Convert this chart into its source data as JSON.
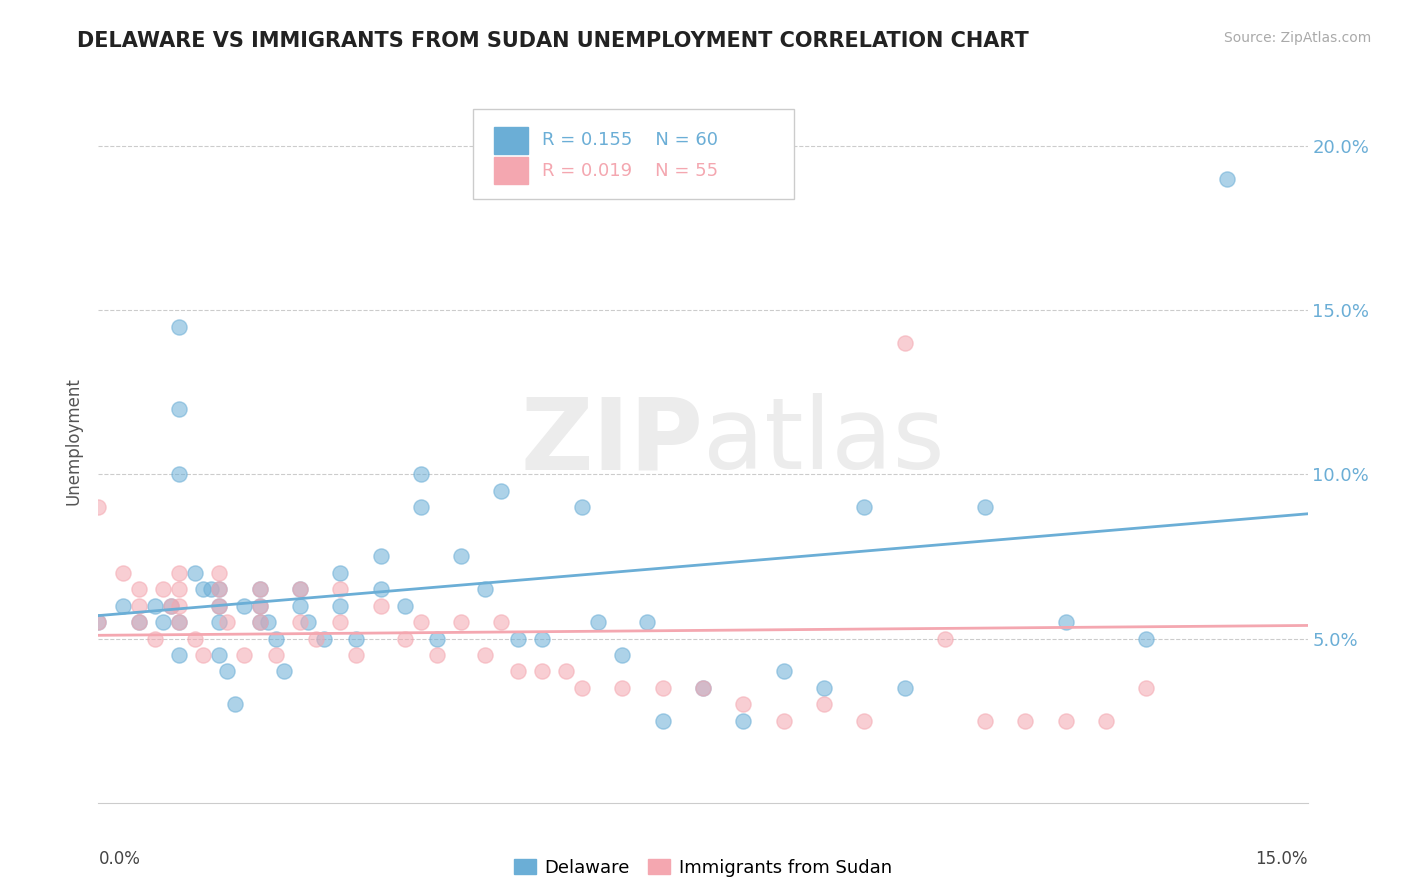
{
  "title": "DELAWARE VS IMMIGRANTS FROM SUDAN UNEMPLOYMENT CORRELATION CHART",
  "source": "Source: ZipAtlas.com",
  "ylabel": "Unemployment",
  "xlim": [
    0.0,
    0.15
  ],
  "ylim": [
    0.0,
    0.22
  ],
  "xtick_vals": [
    0.0,
    0.05,
    0.1,
    0.15
  ],
  "xtick_labels_bottom_left": "0.0%",
  "xtick_labels_bottom_right": "15.0%",
  "ytick_vals": [
    0.05,
    0.1,
    0.15,
    0.2
  ],
  "ytick_labels": [
    "5.0%",
    "10.0%",
    "15.0%",
    "20.0%"
  ],
  "delaware_color": "#6baed6",
  "sudan_color": "#f4a7b0",
  "delaware_R": 0.155,
  "delaware_N": 60,
  "sudan_R": 0.019,
  "sudan_N": 55,
  "legend_label_delaware": "Delaware",
  "legend_label_sudan": "Immigrants from Sudan",
  "watermark_zip": "ZIP",
  "watermark_atlas": "atlas",
  "delaware_x": [
    0.0,
    0.003,
    0.005,
    0.007,
    0.008,
    0.009,
    0.01,
    0.01,
    0.01,
    0.01,
    0.01,
    0.012,
    0.013,
    0.014,
    0.015,
    0.015,
    0.015,
    0.015,
    0.016,
    0.017,
    0.018,
    0.02,
    0.02,
    0.02,
    0.021,
    0.022,
    0.023,
    0.025,
    0.025,
    0.026,
    0.028,
    0.03,
    0.03,
    0.032,
    0.035,
    0.035,
    0.038,
    0.04,
    0.04,
    0.042,
    0.045,
    0.048,
    0.05,
    0.052,
    0.055,
    0.06,
    0.062,
    0.065,
    0.068,
    0.07,
    0.075,
    0.08,
    0.085,
    0.09,
    0.095,
    0.1,
    0.11,
    0.12,
    0.13,
    0.14
  ],
  "delaware_y": [
    0.055,
    0.06,
    0.055,
    0.06,
    0.055,
    0.06,
    0.145,
    0.12,
    0.1,
    0.055,
    0.045,
    0.07,
    0.065,
    0.065,
    0.065,
    0.06,
    0.055,
    0.045,
    0.04,
    0.03,
    0.06,
    0.065,
    0.06,
    0.055,
    0.055,
    0.05,
    0.04,
    0.065,
    0.06,
    0.055,
    0.05,
    0.07,
    0.06,
    0.05,
    0.075,
    0.065,
    0.06,
    0.1,
    0.09,
    0.05,
    0.075,
    0.065,
    0.095,
    0.05,
    0.05,
    0.09,
    0.055,
    0.045,
    0.055,
    0.025,
    0.035,
    0.025,
    0.04,
    0.035,
    0.09,
    0.035,
    0.09,
    0.055,
    0.05,
    0.19
  ],
  "sudan_x": [
    0.0,
    0.0,
    0.003,
    0.005,
    0.005,
    0.005,
    0.007,
    0.008,
    0.009,
    0.01,
    0.01,
    0.01,
    0.01,
    0.012,
    0.013,
    0.015,
    0.015,
    0.015,
    0.016,
    0.018,
    0.02,
    0.02,
    0.02,
    0.022,
    0.025,
    0.025,
    0.027,
    0.03,
    0.03,
    0.032,
    0.035,
    0.038,
    0.04,
    0.042,
    0.045,
    0.048,
    0.05,
    0.052,
    0.055,
    0.058,
    0.06,
    0.065,
    0.07,
    0.075,
    0.08,
    0.085,
    0.09,
    0.095,
    0.1,
    0.105,
    0.11,
    0.115,
    0.12,
    0.125,
    0.13
  ],
  "sudan_y": [
    0.09,
    0.055,
    0.07,
    0.065,
    0.06,
    0.055,
    0.05,
    0.065,
    0.06,
    0.07,
    0.065,
    0.06,
    0.055,
    0.05,
    0.045,
    0.07,
    0.065,
    0.06,
    0.055,
    0.045,
    0.065,
    0.06,
    0.055,
    0.045,
    0.065,
    0.055,
    0.05,
    0.065,
    0.055,
    0.045,
    0.06,
    0.05,
    0.055,
    0.045,
    0.055,
    0.045,
    0.055,
    0.04,
    0.04,
    0.04,
    0.035,
    0.035,
    0.035,
    0.035,
    0.03,
    0.025,
    0.03,
    0.025,
    0.14,
    0.05,
    0.025,
    0.025,
    0.025,
    0.025,
    0.035
  ],
  "del_line_x0": 0.0,
  "del_line_y0": 0.057,
  "del_line_x1": 0.15,
  "del_line_y1": 0.088,
  "sud_line_x0": 0.0,
  "sud_line_y0": 0.051,
  "sud_line_x1": 0.15,
  "sud_line_y1": 0.054
}
